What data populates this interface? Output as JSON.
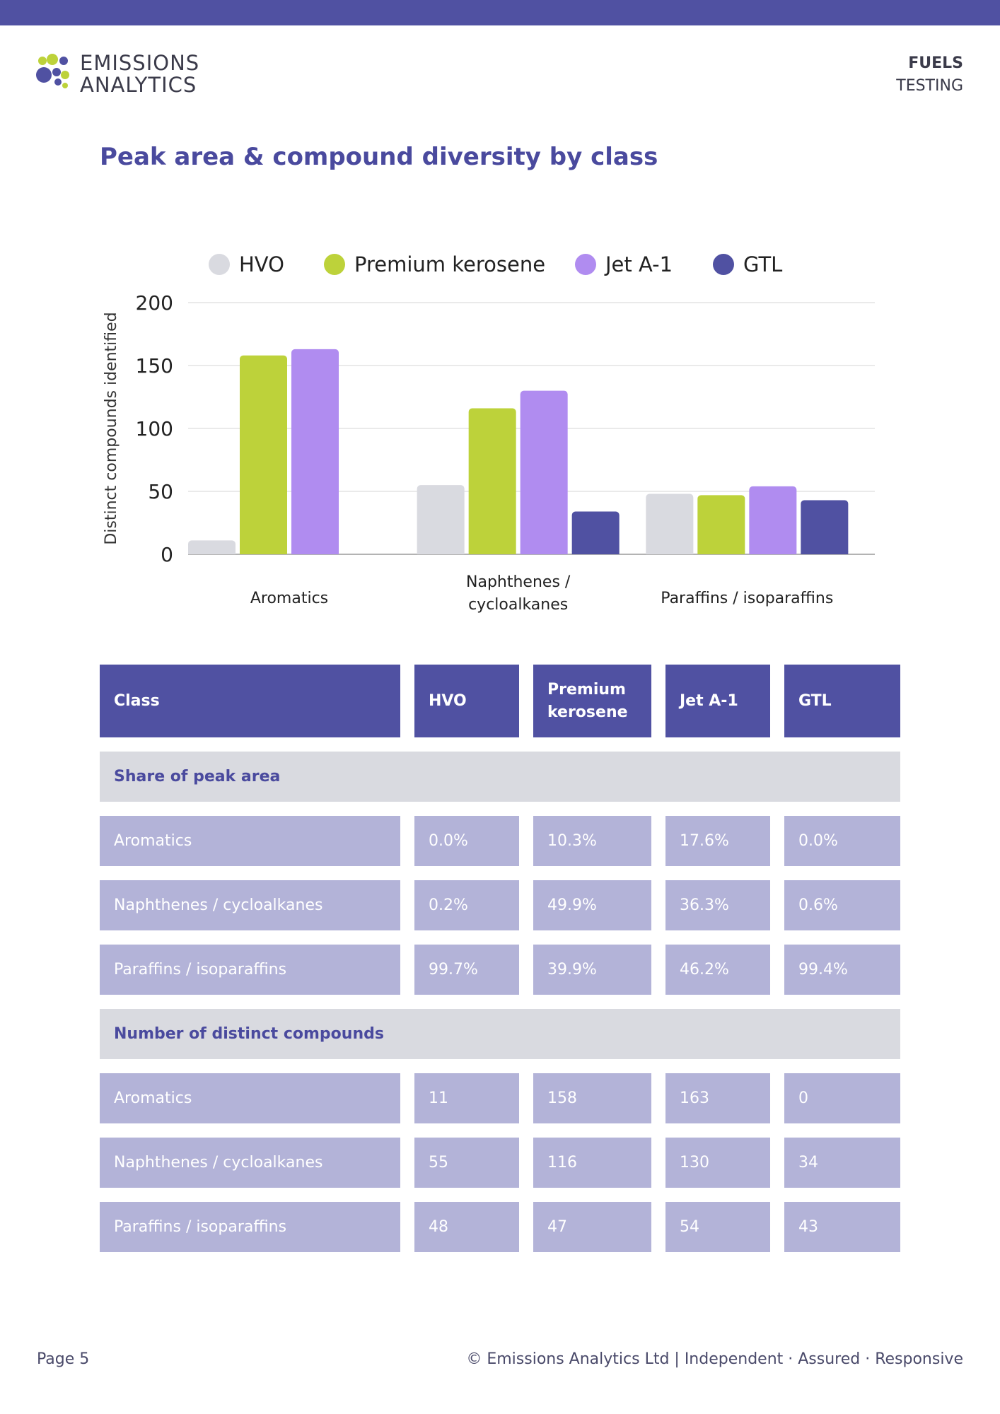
{
  "header": {
    "logo_line1": "EMISSIONS",
    "logo_line2": "ANALYTICS",
    "section_line1": "FUELS",
    "section_line2": "TESTING"
  },
  "page_title": "Peak area & compound diversity by class",
  "chart_data": {
    "type": "bar",
    "categories": [
      "Aromatics",
      "Naphthenes / cycloalkanes",
      "Paraffins / isoparaffins"
    ],
    "category_lines": [
      [
        "Aromatics"
      ],
      [
        "Naphthenes /",
        "cycloalkanes"
      ],
      [
        "Paraffins / isoparaffins"
      ]
    ],
    "series": [
      {
        "name": "HVO",
        "color": "#d9dae0",
        "values": [
          11,
          55,
          48
        ]
      },
      {
        "name": "Premium kerosene",
        "color": "#bdd23a",
        "values": [
          158,
          116,
          47
        ]
      },
      {
        "name": "Jet A-1",
        "color": "#b08cf0",
        "values": [
          163,
          130,
          54
        ]
      },
      {
        "name": "GTL",
        "color": "#5051a2",
        "values": [
          0,
          34,
          43
        ]
      }
    ],
    "ylabel": "Distinct compounds identified",
    "xlabel": "",
    "yticks": [
      0,
      50,
      100,
      150,
      200
    ],
    "ylim": [
      0,
      200
    ],
    "grid": true,
    "legend": "top"
  },
  "table": {
    "headers": [
      "Class",
      "HVO",
      "Premium kerosene",
      "Jet A-1",
      "GTL"
    ],
    "sections": [
      {
        "title": "Share of peak area",
        "rows": [
          [
            "Aromatics",
            "0.0%",
            "10.3%",
            "17.6%",
            "0.0%"
          ],
          [
            "Naphthenes / cycloalkanes",
            "0.2%",
            "49.9%",
            "36.3%",
            "0.6%"
          ],
          [
            "Paraffins / isoparaffins",
            "99.7%",
            "39.9%",
            "46.2%",
            "99.4%"
          ]
        ]
      },
      {
        "title": "Number of distinct compounds",
        "rows": [
          [
            "Aromatics",
            "11",
            "158",
            "163",
            "0"
          ],
          [
            "Naphthenes / cycloalkanes",
            "55",
            "116",
            "130",
            "34"
          ],
          [
            "Paraffins / isoparaffins",
            "48",
            "47",
            "54",
            "43"
          ]
        ]
      }
    ]
  },
  "footer": {
    "page": "Page 5",
    "copyright": "© Emissions Analytics Ltd | Independent · Assured · Responsive"
  }
}
